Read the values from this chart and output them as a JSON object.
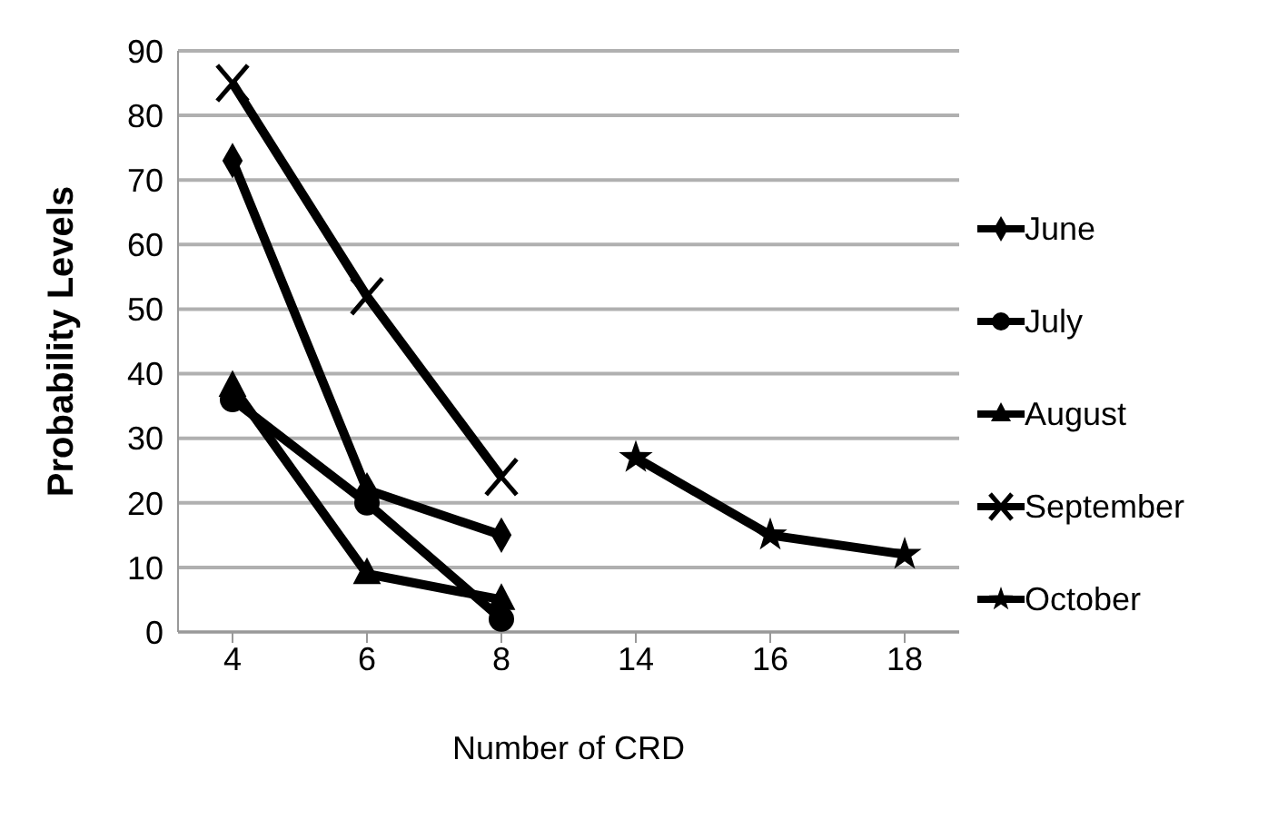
{
  "chart_data": {
    "type": "line",
    "xlabel": "Number of CRD",
    "ylabel": "Probability Levels",
    "categories": [
      "4",
      "6",
      "8",
      "14",
      "16",
      "18"
    ],
    "series": [
      {
        "name": "June",
        "color": "#000000",
        "marker": "diamond",
        "values": [
          73,
          22,
          15,
          null,
          null,
          null
        ]
      },
      {
        "name": "July",
        "color": "#000000",
        "marker": "circle",
        "values": [
          36,
          20,
          2,
          null,
          null,
          null
        ]
      },
      {
        "name": "August",
        "color": "#000000",
        "marker": "triangle",
        "values": [
          38,
          9,
          5,
          null,
          null,
          null
        ]
      },
      {
        "name": "September",
        "color": "#000000",
        "marker": "cross",
        "values": [
          85,
          52,
          24,
          null,
          null,
          null
        ]
      },
      {
        "name": "October",
        "color": "#000000",
        "marker": "star",
        "values": [
          null,
          null,
          null,
          27,
          15,
          12
        ]
      }
    ],
    "ylim": [
      0,
      90
    ],
    "yticks": [
      0,
      10,
      20,
      30,
      40,
      50,
      60,
      70,
      80,
      90
    ],
    "grid": "y",
    "legend": "right",
    "line_style": "solid"
  }
}
